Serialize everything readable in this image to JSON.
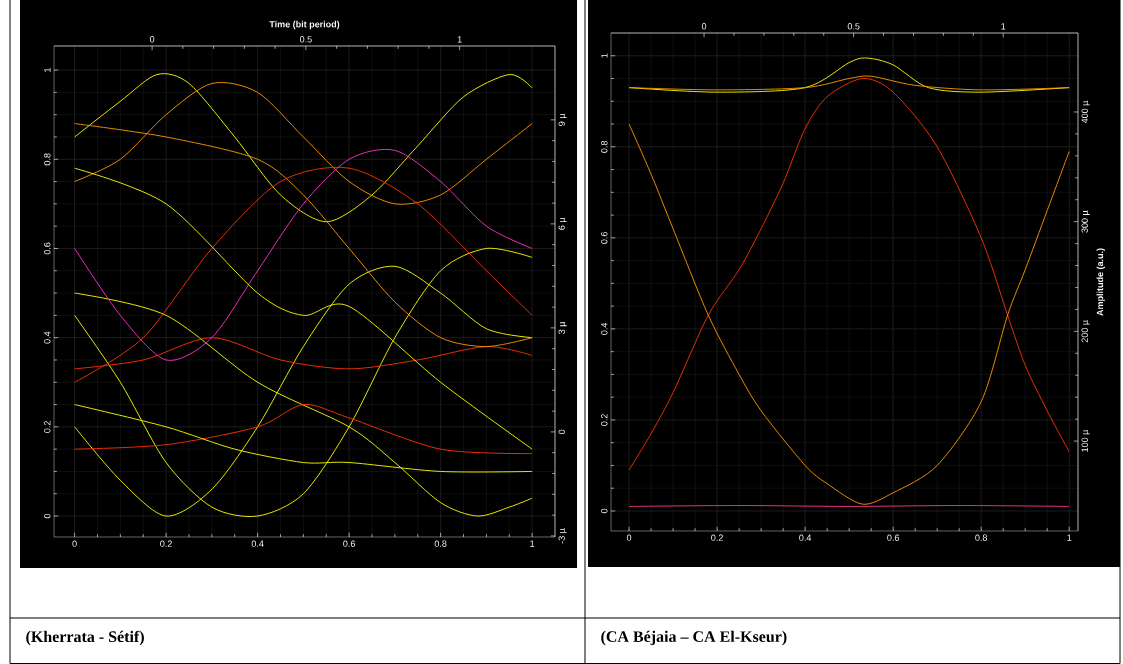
{
  "chart_data": [
    {
      "type": "line",
      "x2label": "Time (bit period)",
      "xlim": [
        -0.045,
        1.05
      ],
      "ylim": [
        -0.047,
        1.054
      ],
      "x2lim": [
        -0.319,
        1.31
      ],
      "y2lim": [
        -3.03,
        11.13
      ],
      "xticks": [
        0,
        0.2,
        0.4,
        0.6,
        0.8,
        1
      ],
      "yticks": [
        0,
        0.2,
        0.4,
        0.6,
        0.8,
        1
      ],
      "x2ticks": [
        0,
        0.5,
        1
      ],
      "y2ticks": [
        {
          "value": -3,
          "label": "-3 µ"
        },
        0,
        {
          "value": 3,
          "label": "3 µ"
        },
        {
          "value": 6,
          "label": "6 µ"
        },
        {
          "value": 9,
          "label": "9 µ"
        }
      ],
      "grid": true,
      "marker": "none",
      "annotations": [
        "(Kherrata - Sétif)"
      ],
      "series": [
        {
          "color": "#ffff00",
          "x": [
            0,
            0.1,
            0.2,
            0.3,
            0.4,
            0.5,
            0.6,
            0.7,
            0.8,
            0.9,
            1
          ],
          "values": [
            0.2,
            0.08,
            0.0,
            0.06,
            0.2,
            0.38,
            0.52,
            0.56,
            0.5,
            0.42,
            0.4
          ]
        },
        {
          "color": "#ffff00",
          "x": [
            0,
            0.1,
            0.2,
            0.3,
            0.4,
            0.5,
            0.6,
            0.7,
            0.8,
            0.9,
            1
          ],
          "values": [
            0.45,
            0.3,
            0.12,
            0.02,
            0.0,
            0.05,
            0.2,
            0.4,
            0.55,
            0.6,
            0.58
          ]
        },
        {
          "color": "#ffff00",
          "x": [
            0,
            0.2,
            0.4,
            0.6,
            0.7,
            0.8,
            0.88,
            0.95,
            1
          ],
          "values": [
            0.5,
            0.45,
            0.3,
            0.2,
            0.12,
            0.03,
            0.0,
            0.02,
            0.04
          ]
        },
        {
          "color": "#ffff00",
          "x": [
            0,
            0.1,
            0.18,
            0.25,
            0.35,
            0.45,
            0.55,
            0.65,
            0.75,
            0.85,
            0.95,
            1
          ],
          "values": [
            0.85,
            0.93,
            0.99,
            0.97,
            0.85,
            0.72,
            0.66,
            0.72,
            0.83,
            0.94,
            0.99,
            0.96
          ]
        },
        {
          "color": "#ff9900",
          "x": [
            0,
            0.1,
            0.2,
            0.3,
            0.4,
            0.5,
            0.6,
            0.7,
            0.8,
            0.9,
            1
          ],
          "values": [
            0.75,
            0.8,
            0.9,
            0.97,
            0.95,
            0.85,
            0.75,
            0.7,
            0.72,
            0.8,
            0.88
          ]
        },
        {
          "color": "#ff3300",
          "x": [
            0,
            0.15,
            0.3,
            0.45,
            0.6,
            0.75,
            0.9,
            1
          ],
          "values": [
            0.33,
            0.35,
            0.4,
            0.35,
            0.33,
            0.35,
            0.38,
            0.36
          ]
        },
        {
          "color": "#ff3300",
          "x": [
            0,
            0.2,
            0.4,
            0.5,
            0.6,
            0.8,
            1
          ],
          "values": [
            0.15,
            0.16,
            0.2,
            0.25,
            0.22,
            0.15,
            0.14
          ]
        },
        {
          "color": "#ff9900",
          "x": [
            0,
            0.2,
            0.4,
            0.5,
            0.6,
            0.7,
            0.8,
            0.9,
            1
          ],
          "values": [
            0.88,
            0.85,
            0.8,
            0.72,
            0.6,
            0.48,
            0.4,
            0.38,
            0.4
          ]
        },
        {
          "color": "#ff33cc",
          "x": [
            0,
            0.1,
            0.2,
            0.3,
            0.4,
            0.5,
            0.6,
            0.7,
            0.8,
            0.9,
            1
          ],
          "values": [
            0.6,
            0.45,
            0.35,
            0.4,
            0.55,
            0.7,
            0.8,
            0.82,
            0.75,
            0.65,
            0.6
          ]
        },
        {
          "color": "#ff3300",
          "x": [
            0,
            0.15,
            0.3,
            0.45,
            0.6,
            0.75,
            0.9,
            1
          ],
          "values": [
            0.3,
            0.4,
            0.6,
            0.75,
            0.78,
            0.7,
            0.55,
            0.45
          ]
        },
        {
          "color": "#ffff00",
          "x": [
            0,
            0.2,
            0.4,
            0.5,
            0.6,
            0.8,
            1
          ],
          "values": [
            0.78,
            0.7,
            0.5,
            0.45,
            0.47,
            0.3,
            0.15
          ]
        },
        {
          "color": "#ffff00",
          "x": [
            0,
            0.2,
            0.35,
            0.5,
            0.6,
            0.8,
            1
          ],
          "values": [
            0.25,
            0.2,
            0.15,
            0.12,
            0.12,
            0.1,
            0.1
          ]
        }
      ]
    },
    {
      "type": "line",
      "y2label": "Amplitude (a.u.)",
      "xlim": [
        -0.041,
        1.02
      ],
      "ylim": [
        -0.044,
        1.05
      ],
      "x2lim": [
        -0.311,
        1.25
      ],
      "y2lim": [
        18,
        472
      ],
      "xticks": [
        0,
        0.2,
        0.4,
        0.6,
        0.8,
        1
      ],
      "yticks": [
        0,
        0.2,
        0.4,
        0.6,
        0.8,
        1
      ],
      "x2ticks": [
        0,
        0.5,
        1
      ],
      "y2ticks": [
        {
          "value": 100,
          "label": "100 µ"
        },
        {
          "value": 200,
          "label": "200 µ"
        },
        {
          "value": 300,
          "label": "300 µ"
        },
        {
          "value": 400,
          "label": "400 µ"
        }
      ],
      "grid": true,
      "marker": "none",
      "annotations": [
        "(CA Béjaia – CA El-Kseur)"
      ],
      "series": [
        {
          "color": "#ffff00",
          "x": [
            0,
            0.2,
            0.4,
            0.5,
            0.54,
            0.6,
            0.68,
            0.8,
            1
          ],
          "values": [
            0.93,
            0.92,
            0.93,
            0.985,
            0.995,
            0.98,
            0.93,
            0.92,
            0.93
          ]
        },
        {
          "color": "#ff9900",
          "x": [
            0,
            0.2,
            0.4,
            0.5,
            0.55,
            0.65,
            0.8,
            1
          ],
          "values": [
            0.93,
            0.925,
            0.93,
            0.95,
            0.955,
            0.935,
            0.925,
            0.93
          ]
        },
        {
          "color": "#ff3399",
          "x": [
            0,
            0.25,
            0.5,
            0.75,
            1
          ],
          "values": [
            0.01,
            0.012,
            0.01,
            0.012,
            0.01
          ]
        },
        {
          "color": "#ff3300",
          "x": [
            0,
            0.05,
            0.1,
            0.18,
            0.25,
            0.3,
            0.35,
            0.4,
            0.45,
            0.53,
            0.6,
            0.7,
            0.8,
            0.86,
            0.9,
            0.95,
            1
          ],
          "values": [
            0.09,
            0.17,
            0.26,
            0.43,
            0.53,
            0.62,
            0.72,
            0.84,
            0.91,
            0.95,
            0.92,
            0.8,
            0.6,
            0.43,
            0.32,
            0.22,
            0.13
          ]
        },
        {
          "color": "#ff9900",
          "x": [
            0,
            0.05,
            0.1,
            0.18,
            0.25,
            0.3,
            0.4,
            0.45,
            0.53,
            0.6,
            0.7,
            0.8,
            0.86,
            0.9,
            0.95,
            1
          ],
          "values": [
            0.85,
            0.74,
            0.62,
            0.43,
            0.3,
            0.22,
            0.1,
            0.06,
            0.015,
            0.04,
            0.1,
            0.24,
            0.43,
            0.53,
            0.66,
            0.79
          ]
        }
      ]
    }
  ]
}
